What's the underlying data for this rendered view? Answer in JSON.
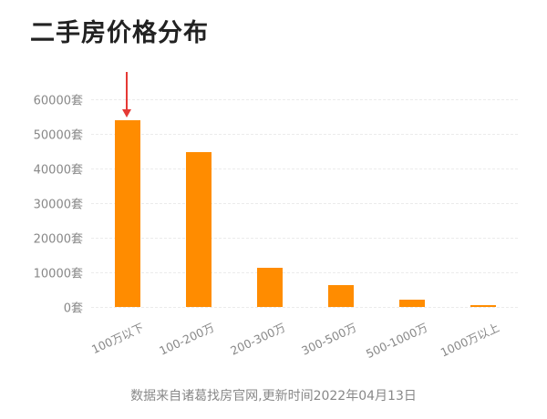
{
  "title": "二手房价格分布",
  "footer": "数据来自诸葛找房官网,更新时间2022年04月13日",
  "colors": {
    "bar": "#ff8c00",
    "arrow": "#e53935",
    "title": "#222222",
    "axis_text": "#888888"
  },
  "y_ticks": [
    "0套",
    "10000套",
    "20000套",
    "30000套",
    "40000套",
    "50000套",
    "60000套"
  ],
  "chart_data": {
    "type": "bar",
    "title": "二手房价格分布",
    "xlabel": "",
    "ylabel": "",
    "categories": [
      "100万以下",
      "100-200万",
      "200-300万",
      "300-500万",
      "500-1000万",
      "1000万以上"
    ],
    "values": [
      54000,
      44800,
      11300,
      6300,
      2100,
      400
    ],
    "ylim": [
      0,
      60000
    ],
    "y_tick_step": 10000,
    "y_unit": "套",
    "grid": true,
    "legend": null,
    "annotations": [
      {
        "type": "arrow",
        "target_category": "100万以下",
        "color": "#e53935"
      }
    ],
    "source_note": "数据来自诸葛找房官网,更新时间2022年04月13日"
  }
}
